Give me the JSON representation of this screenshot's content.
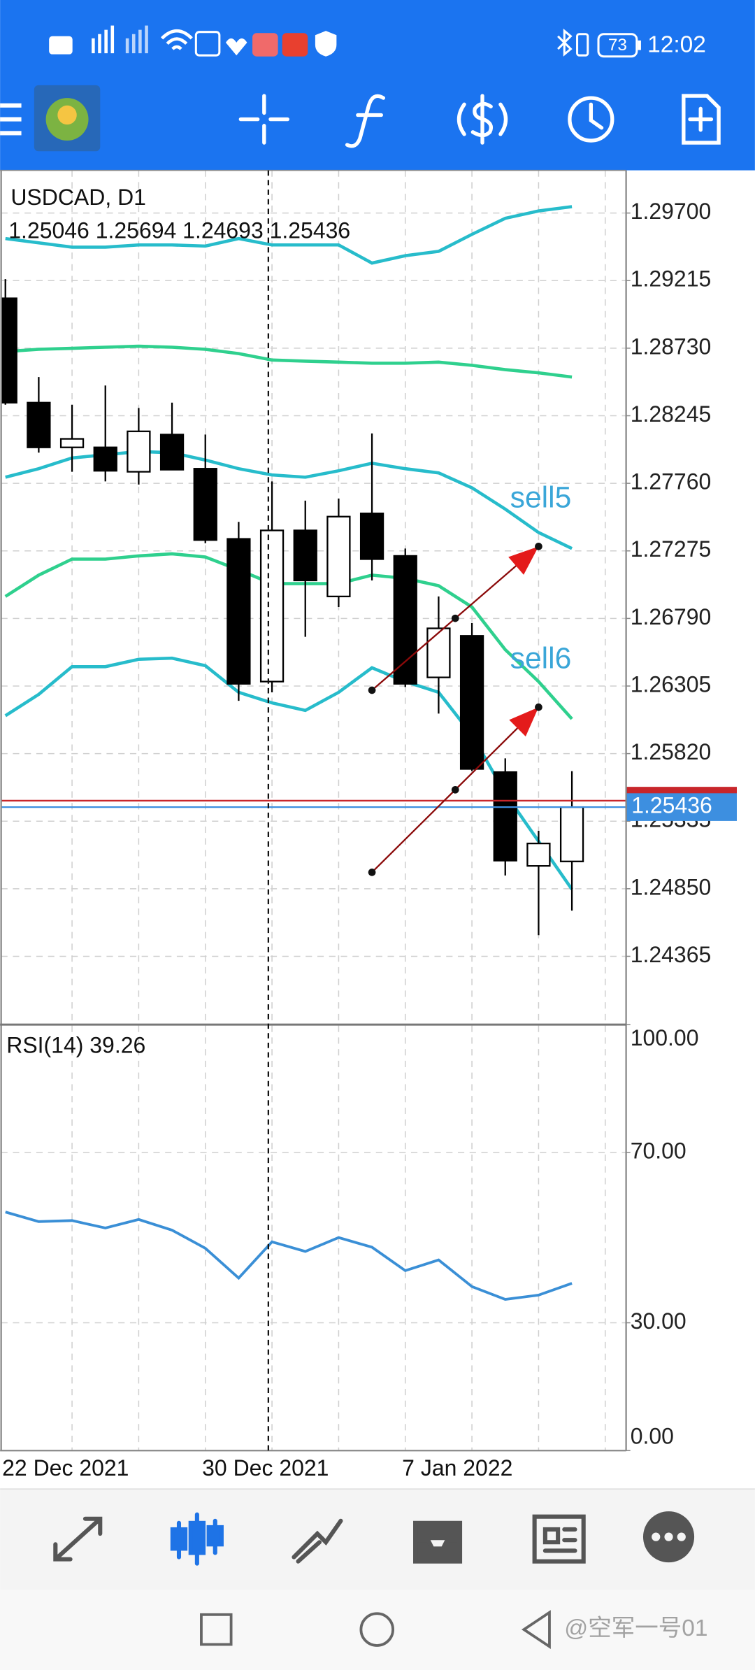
{
  "status_bar": {
    "battery": "73",
    "time": "12:02"
  },
  "watermark": "@空军一号01",
  "chart_data": [
    {
      "type": "candlestick",
      "title": "USDCAD, D1",
      "subtitle": "1.25046 1.25694 1.24693 1.25436",
      "categories": [
        "22 Dec 2021",
        null,
        null,
        null,
        null,
        null,
        "30 Dec 2021",
        null,
        null,
        null,
        null,
        null,
        "7 Jan 2022",
        null,
        null,
        null,
        null,
        null
      ],
      "open": [
        1.29088,
        1.28339,
        1.28018,
        1.28018,
        1.27843,
        1.2811,
        1.27865,
        1.27361,
        1.26337,
        1.27422,
        1.26948,
        1.27544,
        1.27239,
        1.26367,
        1.26665,
        1.25687,
        1.25014,
        1.25046
      ],
      "high": [
        1.29226,
        1.28523,
        1.28324,
        1.28462,
        1.28301,
        1.28339,
        1.2811,
        1.27483,
        1.27774,
        1.27636,
        1.27651,
        1.28118,
        1.27292,
        1.26948,
        1.26757,
        1.25786,
        1.25266,
        1.25694
      ],
      "low": [
        1.28324,
        1.2798,
        1.27843,
        1.27774,
        1.27751,
        1.27858,
        1.2733,
        1.26199,
        1.2626,
        1.26658,
        1.26872,
        1.27063,
        1.26298,
        1.26107,
        1.25695,
        1.24945,
        1.24517,
        1.24693
      ],
      "close": [
        1.28339,
        1.28018,
        1.28079,
        1.2785,
        1.28133,
        1.27858,
        1.27353,
        1.26321,
        1.27422,
        1.27063,
        1.27521,
        1.27216,
        1.26321,
        1.26719,
        1.2571,
        1.25052,
        1.25175,
        1.25436
      ],
      "up_color": "#ffffff",
      "down_color": "#000000",
      "bands": [
        {
          "color": "#27bccb",
          "values": [
            1.29517,
            1.29486,
            1.29455,
            1.29455,
            1.29471,
            1.29471,
            1.29463,
            1.29517,
            1.29471,
            1.29471,
            1.29471,
            1.29341,
            1.29394,
            1.29425,
            1.29547,
            1.29662,
            1.29715,
            1.29746
          ]
        },
        {
          "color": "#2fd08e",
          "values": [
            1.28706,
            1.28722,
            1.28729,
            1.28737,
            1.28744,
            1.28737,
            1.28722,
            1.28691,
            1.28645,
            1.28637,
            1.2863,
            1.28622,
            1.28622,
            1.2863,
            1.28607,
            1.28576,
            1.28553,
            1.28523
          ]
        },
        {
          "color": "#27bccb",
          "values": [
            1.27804,
            1.27865,
            1.27942,
            1.27965,
            1.27988,
            1.2798,
            1.27927,
            1.27865,
            1.2782,
            1.27804,
            1.2785,
            1.27904,
            1.27865,
            1.27835,
            1.27728,
            1.27575,
            1.27407,
            1.27292
          ]
        },
        {
          "color": "#2fd08e",
          "values": [
            1.26948,
            1.27101,
            1.27216,
            1.27216,
            1.27239,
            1.27254,
            1.27231,
            1.27139,
            1.2704,
            1.2704,
            1.2704,
            1.27101,
            1.27078,
            1.27025,
            1.26872,
            1.26566,
            1.26337,
            1.26069
          ]
        },
        {
          "color": "#27bccb",
          "values": [
            1.26092,
            1.26245,
            1.26444,
            1.26444,
            1.26497,
            1.26505,
            1.26451,
            1.2626,
            1.26184,
            1.2613,
            1.2626,
            1.26436,
            1.26337,
            1.2626,
            1.25954,
            1.25534,
            1.2519,
            1.24846
          ]
        }
      ],
      "bid_line": {
        "value": 1.25436,
        "label": "1.25436",
        "color": "#3d8fe0"
      },
      "ask_line": {
        "value": 1.25482,
        "color": "#c8262b"
      },
      "annotations": [
        {
          "label": "sell5",
          "x": [
            11,
            16
          ],
          "y": [
            1.26275,
            1.27307
          ],
          "color": "#8b0a0a"
        },
        {
          "label": "sell6",
          "x": [
            11,
            16
          ],
          "y": [
            1.24968,
            1.26153
          ],
          "color": "#8b0a0a"
        }
      ],
      "ylim": [
        1.23875,
        1.30006
      ],
      "yticks": [
        {
          "value": 1.297,
          "label": "1.29700"
        },
        {
          "value": 1.29215,
          "label": "1.29215"
        },
        {
          "value": 1.2873,
          "label": "1.28730"
        },
        {
          "value": 1.28245,
          "label": "1.28245"
        },
        {
          "value": 1.2776,
          "label": "1.27760"
        },
        {
          "value": 1.27275,
          "label": "1.27275"
        },
        {
          "value": 1.2679,
          "label": "1.26790"
        },
        {
          "value": 1.26305,
          "label": "1.26305"
        },
        {
          "value": 1.2582,
          "label": "1.25820"
        },
        {
          "value": 1.25335,
          "label": "1.25335"
        },
        {
          "value": 1.2485,
          "label": "1.24850"
        },
        {
          "value": 1.24365,
          "label": "1.24365"
        }
      ],
      "grid": true
    },
    {
      "type": "line",
      "title": "RSI(14) 39.26",
      "values": [
        56.0,
        53.75,
        54.0,
        52.25,
        54.25,
        51.75,
        47.5,
        40.5,
        49.0,
        46.75,
        50.0,
        47.75,
        42.25,
        44.75,
        38.5,
        35.5,
        36.5,
        39.26
      ],
      "color": "#3a8fd6",
      "ylim": [
        0,
        100
      ],
      "yticks": [
        {
          "value": 100,
          "label": "100.00"
        },
        {
          "value": 70,
          "label": "70.00"
        },
        {
          "value": 30,
          "label": "30.00"
        },
        {
          "value": 0,
          "label": "0.00"
        }
      ],
      "grid": true
    }
  ]
}
